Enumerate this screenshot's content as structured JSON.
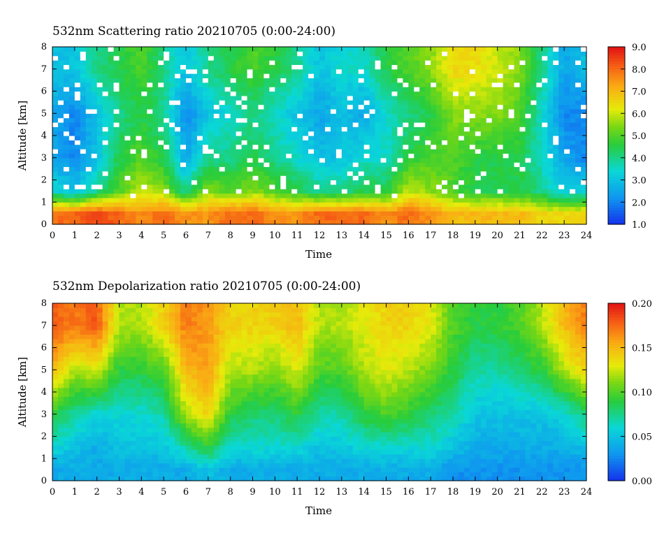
{
  "figure": {
    "panels": [
      {
        "title": "532nm Scattering ratio  20210705 (0:00-24:00)",
        "xlabel": "Time",
        "ylabel": "Altitude [km]",
        "colorbar_ticks": [
          "1.0",
          "2.0",
          "3.0",
          "4.0",
          "5.0",
          "6.0",
          "7.0",
          "8.0",
          "9.0"
        ]
      },
      {
        "title": "532nm Depolarization ratio  20210705 (0:00-24:00)",
        "xlabel": "Time",
        "ylabel": "Altitude [km]",
        "colorbar_ticks": [
          "0.00",
          "0.05",
          "0.10",
          "0.15",
          "0.20"
        ]
      }
    ]
  },
  "chart_data": [
    {
      "type": "heatmap",
      "title": "532nm Scattering ratio  20210705 (0:00-24:00)",
      "xlabel": "Time",
      "ylabel": "Altitude [km]",
      "xlim": [
        0,
        24
      ],
      "ylim": [
        0,
        8
      ],
      "x_ticks": [
        0,
        1,
        2,
        3,
        4,
        5,
        6,
        7,
        8,
        9,
        10,
        11,
        12,
        13,
        14,
        15,
        16,
        17,
        18,
        19,
        20,
        21,
        22,
        23,
        24
      ],
      "y_ticks": [
        0,
        1,
        2,
        3,
        4,
        5,
        6,
        7,
        8
      ],
      "colorbar": {
        "min": 1.0,
        "max": 9.0,
        "ticks": [
          1.0,
          2.0,
          3.0,
          4.0,
          5.0,
          6.0,
          7.0,
          8.0,
          9.0
        ],
        "colormap": "rainbow (blue-cyan-green-yellow-red)"
      },
      "no_data_color": "#ffffff",
      "profile_hours": [
        0,
        1,
        2,
        3,
        4,
        5,
        6,
        7,
        8,
        9,
        10,
        11,
        12,
        13,
        14,
        15,
        16,
        17,
        18,
        19,
        20,
        21,
        22,
        23,
        24
      ],
      "profile_altitudes_km": [
        0.5,
        1.5,
        3,
        5,
        7
      ],
      "approx_values": [
        [
          8.0,
          3.5,
          2.5,
          2.5,
          3.0
        ],
        [
          8.0,
          3.0,
          2.0,
          2.0,
          3.0
        ],
        [
          8.5,
          4.0,
          3.0,
          3.0,
          4.0
        ],
        [
          8.0,
          5.0,
          4.5,
          4.0,
          4.5
        ],
        [
          7.5,
          6.0,
          5.0,
          4.5,
          5.0
        ],
        [
          8.0,
          5.5,
          4.5,
          4.0,
          4.0
        ],
        [
          7.5,
          4.0,
          2.5,
          2.0,
          3.0
        ],
        [
          7.5,
          5.5,
          4.0,
          3.0,
          4.0
        ],
        [
          8.0,
          5.0,
          4.0,
          3.5,
          4.5
        ],
        [
          8.0,
          5.5,
          4.5,
          4.0,
          5.0
        ],
        [
          7.5,
          5.0,
          4.0,
          3.5,
          4.5
        ],
        [
          7.5,
          4.5,
          3.5,
          3.0,
          4.0
        ],
        [
          8.0,
          4.0,
          3.0,
          2.5,
          3.0
        ],
        [
          8.0,
          4.0,
          3.0,
          3.0,
          3.5
        ],
        [
          8.0,
          4.5,
          3.5,
          2.5,
          3.5
        ],
        [
          7.5,
          4.5,
          3.5,
          3.5,
          4.5
        ],
        [
          8.0,
          6.0,
          4.5,
          4.0,
          5.0
        ],
        [
          7.5,
          5.5,
          5.0,
          4.5,
          5.5
        ],
        [
          7.0,
          5.0,
          5.0,
          5.5,
          6.5
        ],
        [
          7.0,
          4.5,
          4.5,
          5.5,
          6.5
        ],
        [
          7.0,
          4.5,
          4.5,
          5.5,
          6.0
        ],
        [
          7.0,
          4.5,
          4.5,
          5.0,
          5.5
        ],
        [
          6.5,
          4.0,
          3.5,
          3.5,
          4.0
        ],
        [
          6.5,
          3.0,
          2.5,
          2.0,
          2.5
        ],
        [
          6.5,
          3.5,
          2.0,
          2.0,
          3.0
        ]
      ]
    },
    {
      "type": "heatmap",
      "title": "532nm Depolarization ratio  20210705 (0:00-24:00)",
      "xlabel": "Time",
      "ylabel": "Altitude [km]",
      "xlim": [
        0,
        24
      ],
      "ylim": [
        0,
        8
      ],
      "x_ticks": [
        0,
        1,
        2,
        3,
        4,
        5,
        6,
        7,
        8,
        9,
        10,
        11,
        12,
        13,
        14,
        15,
        16,
        17,
        18,
        19,
        20,
        21,
        22,
        23,
        24
      ],
      "y_ticks": [
        0,
        1,
        2,
        3,
        4,
        5,
        6,
        7,
        8
      ],
      "colorbar": {
        "min": 0.0,
        "max": 0.2,
        "ticks": [
          0.0,
          0.05,
          0.1,
          0.15,
          0.2
        ],
        "colormap": "rainbow (blue-cyan-green-yellow-red)"
      },
      "no_data_color": "#ffffff",
      "profile_hours": [
        0,
        1,
        2,
        3,
        4,
        5,
        6,
        7,
        8,
        9,
        10,
        11,
        12,
        13,
        14,
        15,
        16,
        17,
        18,
        19,
        20,
        21,
        22,
        23,
        24
      ],
      "profile_altitudes_km": [
        0.5,
        1.5,
        3,
        5,
        7
      ],
      "approx_values": [
        [
          0.04,
          0.06,
          0.09,
          0.15,
          0.18
        ],
        [
          0.04,
          0.05,
          0.07,
          0.12,
          0.17
        ],
        [
          0.04,
          0.04,
          0.06,
          0.13,
          0.18
        ],
        [
          0.04,
          0.05,
          0.06,
          0.09,
          0.12
        ],
        [
          0.04,
          0.05,
          0.06,
          0.09,
          0.12
        ],
        [
          0.04,
          0.05,
          0.07,
          0.1,
          0.14
        ],
        [
          0.04,
          0.07,
          0.12,
          0.15,
          0.17
        ],
        [
          0.05,
          0.09,
          0.14,
          0.16,
          0.16
        ],
        [
          0.04,
          0.06,
          0.09,
          0.12,
          0.14
        ],
        [
          0.04,
          0.06,
          0.08,
          0.12,
          0.14
        ],
        [
          0.04,
          0.06,
          0.08,
          0.11,
          0.14
        ],
        [
          0.04,
          0.06,
          0.09,
          0.13,
          0.15
        ],
        [
          0.04,
          0.05,
          0.07,
          0.1,
          0.12
        ],
        [
          0.04,
          0.05,
          0.07,
          0.1,
          0.12
        ],
        [
          0.04,
          0.06,
          0.09,
          0.12,
          0.13
        ],
        [
          0.04,
          0.06,
          0.1,
          0.13,
          0.14
        ],
        [
          0.04,
          0.06,
          0.09,
          0.12,
          0.14
        ],
        [
          0.04,
          0.06,
          0.08,
          0.11,
          0.13
        ],
        [
          0.03,
          0.05,
          0.07,
          0.09,
          0.1
        ],
        [
          0.03,
          0.04,
          0.05,
          0.07,
          0.09
        ],
        [
          0.03,
          0.04,
          0.05,
          0.07,
          0.09
        ],
        [
          0.03,
          0.04,
          0.05,
          0.08,
          0.1
        ],
        [
          0.03,
          0.04,
          0.05,
          0.09,
          0.12
        ],
        [
          0.03,
          0.04,
          0.06,
          0.12,
          0.15
        ],
        [
          0.03,
          0.05,
          0.08,
          0.14,
          0.17
        ]
      ]
    }
  ]
}
